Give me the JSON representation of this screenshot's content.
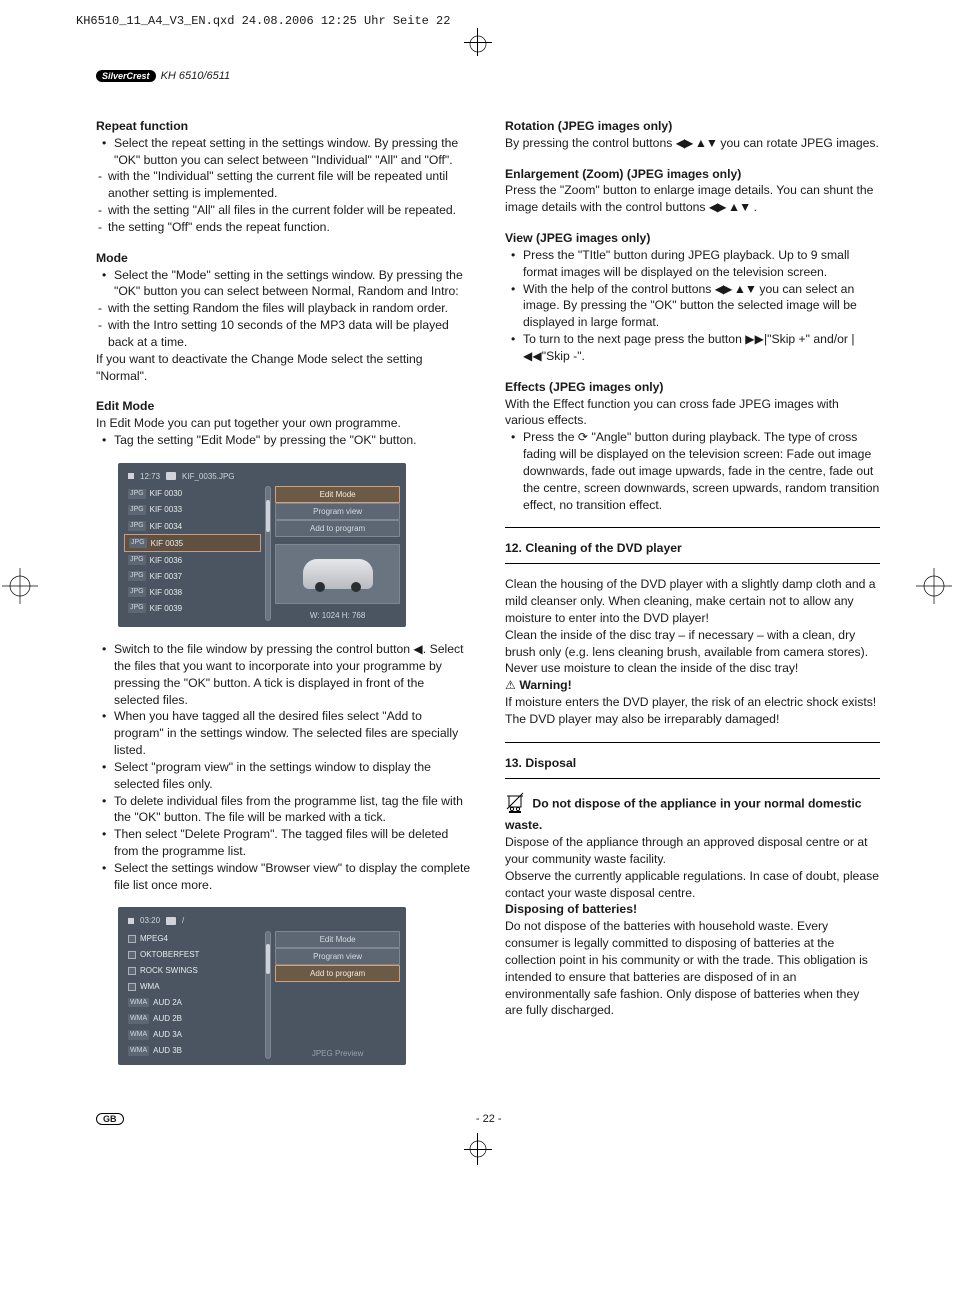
{
  "header_meta": "KH6510_11_A4_V3_EN.qxd  24.08.2006  12:25 Uhr  Seite 22",
  "brand_badge": "SilverCrest",
  "model_line": "KH 6510/6511",
  "left": {
    "repeat": {
      "h": "Repeat function",
      "b1": "Select the repeat setting in the settings window. By pressing the \"OK\" button you can select between \"Individual\" \"All\" and \"Off\".",
      "d1": "with the \"Individual\" setting the current file will be repeated until another setting is implemented.",
      "d2": "with the setting \"All\" all files in the current folder will be repeated.",
      "d3": "the setting \"Off\" ends the repeat function."
    },
    "mode": {
      "h": "Mode",
      "b1": "Select the \"Mode\" setting in the settings window. By pressing the \"OK\" button you can select between Normal, Random and Intro:",
      "d1": "with the setting Random the files will playback in random order.",
      "d2": "with the Intro setting 10 seconds of the MP3 data will be played back at a time.",
      "tail": "If you want to deactivate the Change Mode select the setting \"Normal\"."
    },
    "edit": {
      "h": "Edit Mode",
      "p": "In Edit Mode you can put together your own programme.",
      "b1": "Tag the setting \"Edit Mode\" by pressing the \"OK\" button."
    },
    "ss1": {
      "time": "12:73",
      "title": "KIF_0035.JPG",
      "rows": [
        "KIF 0030",
        "KIF 0033",
        "KIF 0034",
        "KIF 0035",
        "KIF 0036",
        "KIF 0037",
        "KIF 0038",
        "KIF 0039"
      ],
      "badge": "JPG",
      "sel": 3,
      "btns": [
        "Edit Mode",
        "Program view",
        "Add to program"
      ],
      "dim": "W: 1024  H: 768"
    },
    "after1": {
      "b1": "Switch to the file window by pressing the control button ◀. Select the files that you want to incorporate into your programme by pressing the \"OK\" button. A tick is displayed in front of the selected files.",
      "b2": "When you have tagged all the desired files select \"Add to program\" in the settings window. The selected files are specially listed.",
      "b3": "Select \"program view\" in the settings window to display the selected files only.",
      "b4": "To delete individual files from the programme list, tag the file with the \"OK\" button. The file will be marked with a tick.",
      "b5": "Then select \"Delete Program\". The tagged files will be deleted from the programme list.",
      "b6": "Select the settings window \"Browser view\" to display the complete file list once more."
    },
    "ss2": {
      "time": "03:20",
      "title": "/",
      "rows": [
        {
          "b": "",
          "t": "MPEG4"
        },
        {
          "b": "",
          "t": "OKTOBERFEST"
        },
        {
          "b": "",
          "t": "ROCK SWINGS"
        },
        {
          "b": "",
          "t": "WMA"
        },
        {
          "b": "WMA",
          "t": "AUD 2A"
        },
        {
          "b": "WMA",
          "t": "AUD 2B"
        },
        {
          "b": "WMA",
          "t": "AUD 3A"
        },
        {
          "b": "WMA",
          "t": "AUD 3B"
        }
      ],
      "btns": [
        "Edit Mode",
        "Program view",
        "Add to program"
      ],
      "sel_btn": 2,
      "preview_label": "JPEG Preview"
    }
  },
  "right": {
    "rot": {
      "h": "Rotation (JPEG images only)",
      "p1a": "By pressing the control buttons ",
      "p1b": " you can rotate JPEG images."
    },
    "zoom": {
      "h": "Enlargement (Zoom) (JPEG images only)",
      "p1a": "Press the \"Zoom\" button to enlarge image details. You can shunt the image details with the control buttons ",
      "p1b": " ."
    },
    "view": {
      "h": "View (JPEG images only)",
      "b1": "Press the \"TItle\" button during JPEG playback. Up to 9 small format images will be displayed on the television screen.",
      "b2a": "With the help of the control buttons ",
      "b2b": " you can select an image. By pressing the \"OK\" button the selected image will be displayed in large format.",
      "b3": "To turn to the next page press the button ▶▶|\"Skip +\" and/or |◀◀\"Skip -\"."
    },
    "fx": {
      "h": "Effects (JPEG images only)",
      "p": "With the Effect function you can cross fade JPEG images with various effects.",
      "b1": "Press the ⟳ \"Angle\" button during playback. The type of cross fading will be displayed on the television screen: Fade out image downwards, fade out image upwards, fade in the centre, fade out the centre, screen downwards, screen upwards, random transition effect, no transition effect."
    },
    "clean": {
      "h": "12. Cleaning of the DVD player",
      "p1": "Clean the housing of the DVD player with a slightly damp cloth and a mild cleanser only. When cleaning, make certain not to allow any moisture to enter into the DVD player!",
      "p2": "Clean the inside of the disc tray – if necessary –  with a clean, dry brush only (e.g. lens cleaning brush, available from camera stores). Never use moisture to clean the inside of the disc tray!",
      "wh": "Warning!",
      "wp": "If moisture enters the DVD player, the risk of an electric shock exists! The DVD player may also be irreparably damaged!"
    },
    "disp": {
      "h": "13. Disposal",
      "bold": "Do not dispose of the appliance in your normal domestic waste.",
      "p1": "Dispose of the appliance through an approved disposal centre or at your community waste facility.",
      "p2": "Observe the currently applicable regulations. In case of doubt, please contact your waste disposal centre.",
      "bh": "Disposing of batteries!",
      "bp": "Do not dispose of the batteries with household waste. Every consumer is legally committed to disposing of batteries at the collection point in his community or with the trade. This obligation is intended to ensure that batteries are disposed of in an environmentally safe fashion. Only dispose of batteries when they are fully discharged."
    }
  },
  "arrows4": "◀▶ ▲▼",
  "footer": {
    "gb": "GB",
    "page": "- 22 -"
  }
}
